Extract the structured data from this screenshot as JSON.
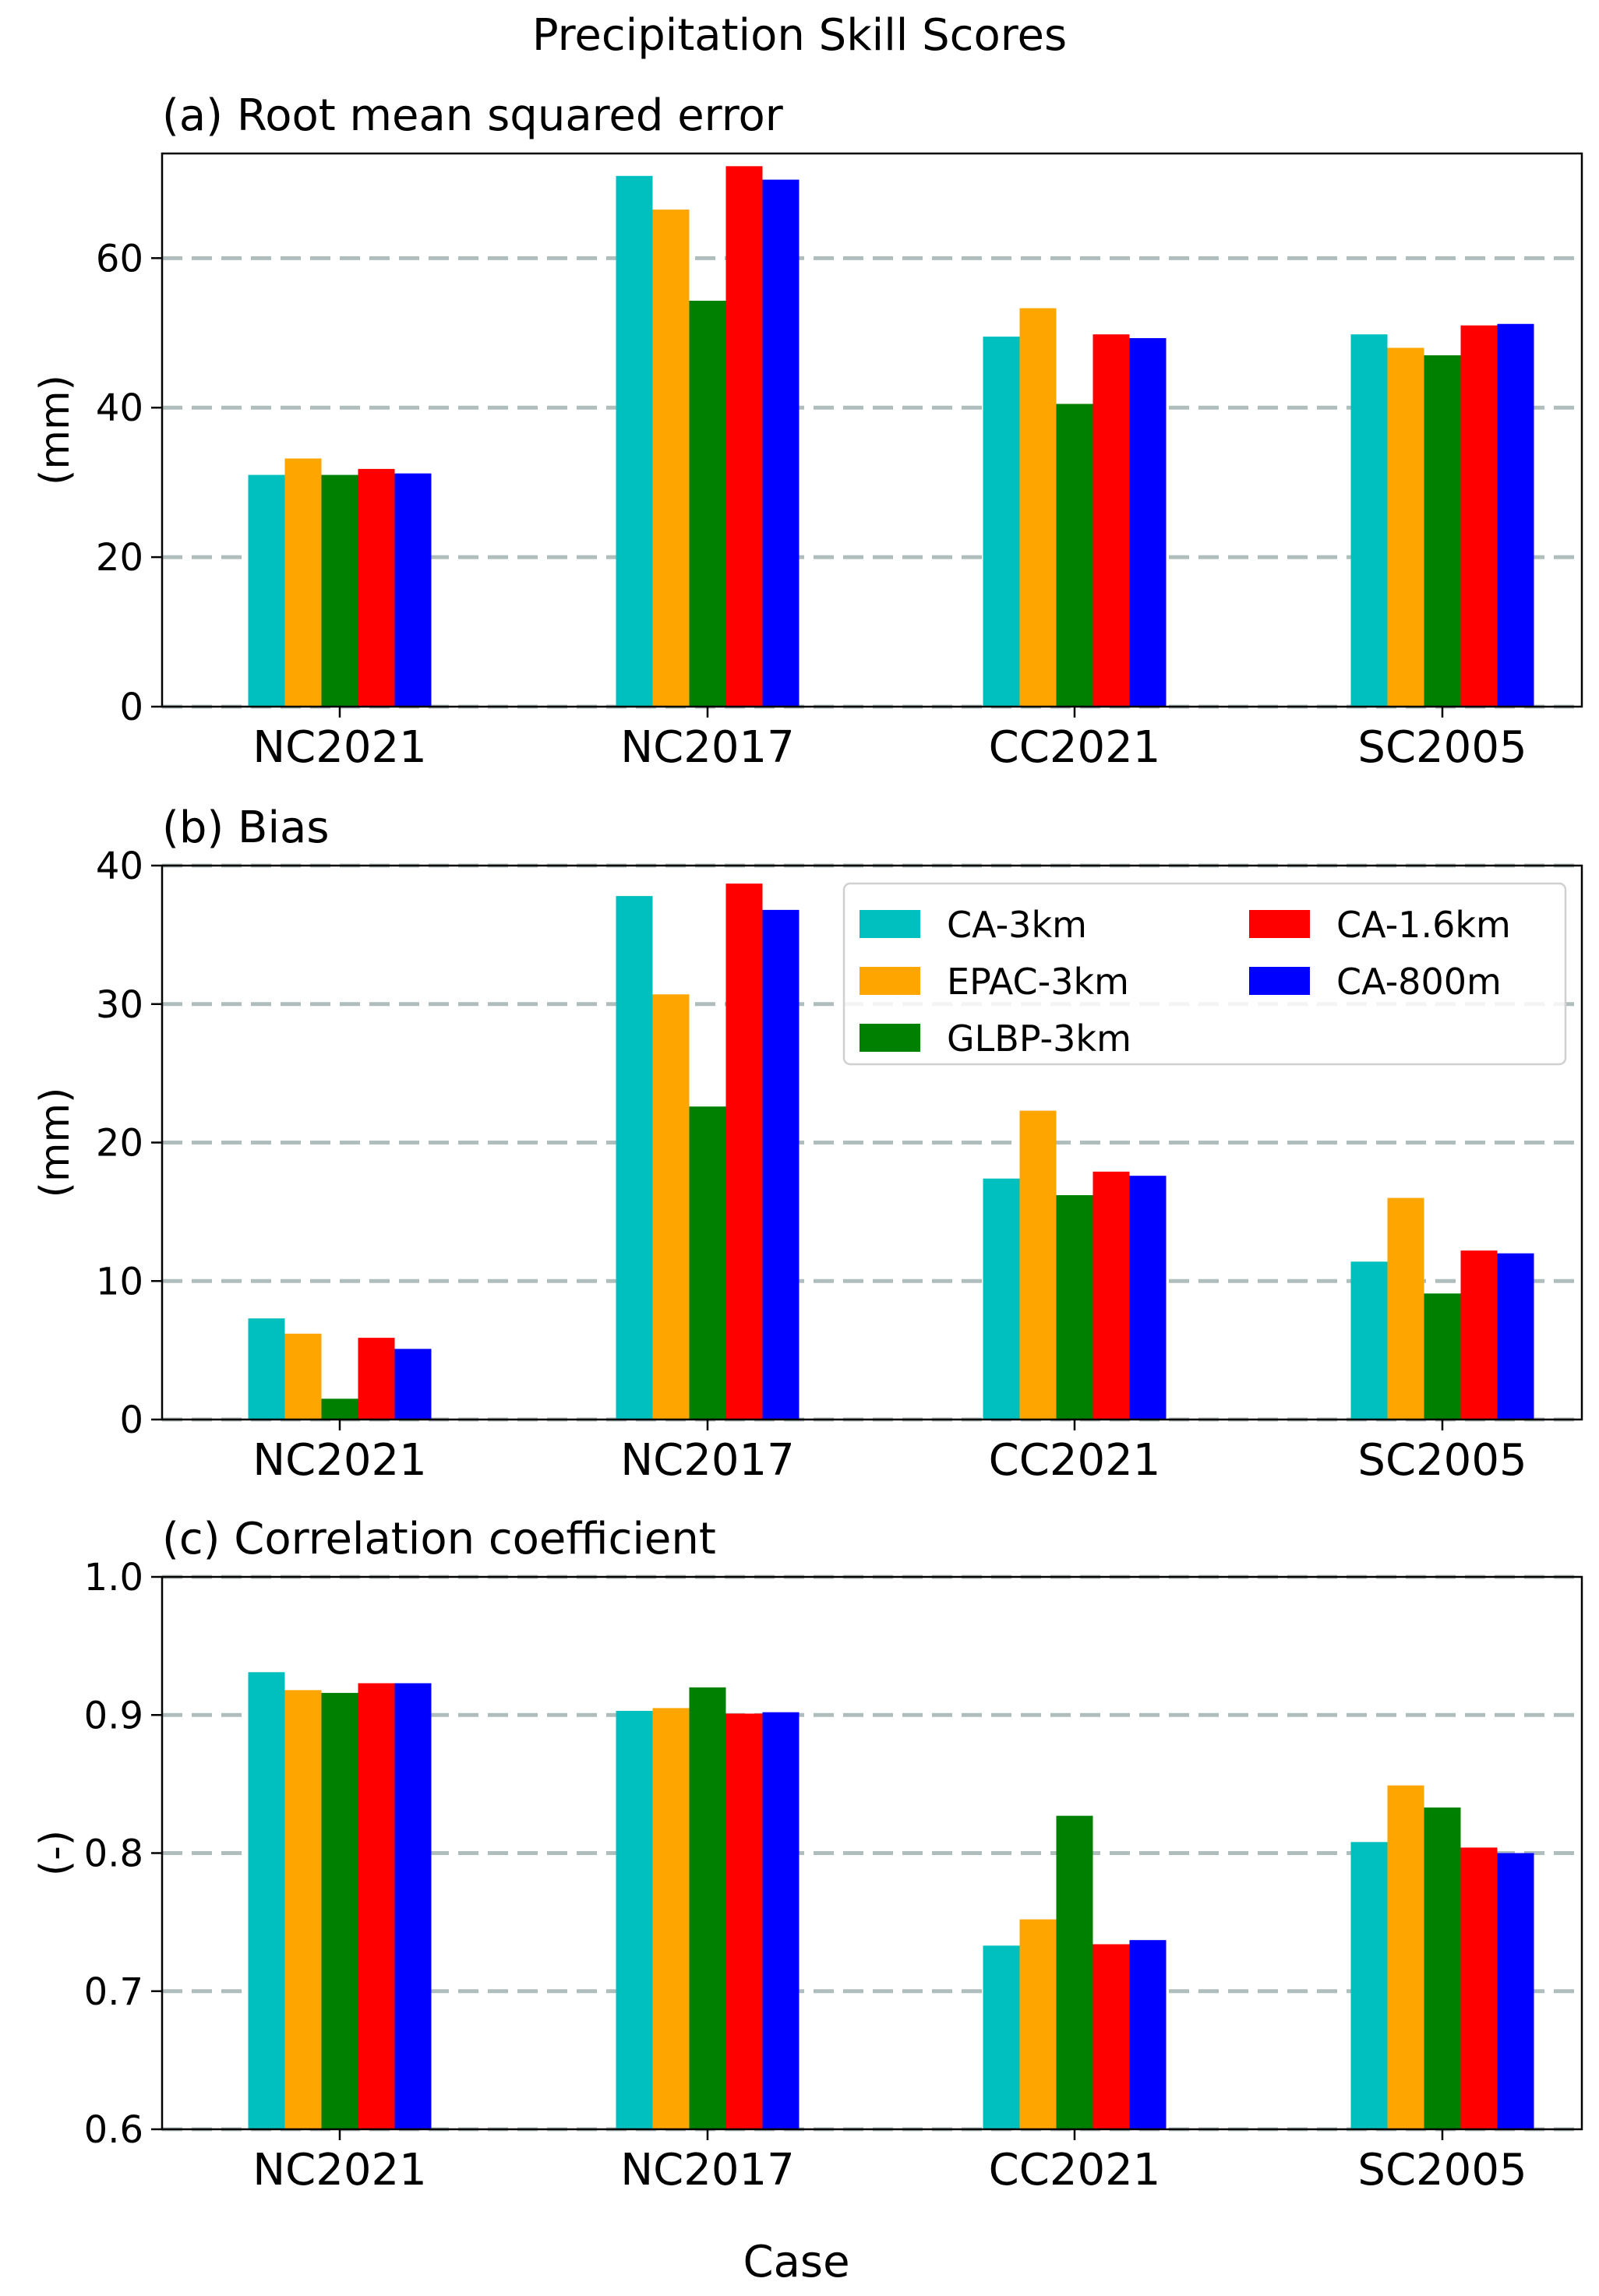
{
  "figure": {
    "title": "Precipitation Skill Scores",
    "xlabel": "Case"
  },
  "legend": {
    "items": [
      {
        "name": "CA-3km",
        "color": "#00BFBF"
      },
      {
        "name": "EPAC-3km",
        "color": "#FFA500"
      },
      {
        "name": "GLBP-3km",
        "color": "#008000"
      },
      {
        "name": "CA-1.6km",
        "color": "#FF0000"
      },
      {
        "name": "CA-800m",
        "color": "#0000FF"
      }
    ]
  },
  "chart_data": [
    {
      "type": "bar",
      "title": "(a) Root mean squared error",
      "ylabel": "(mm)",
      "xlabel": "",
      "ylim": [
        0,
        74
      ],
      "yticks": [
        0,
        20,
        40,
        60
      ],
      "ytick_labels": [
        "0",
        "20",
        "40",
        "60"
      ],
      "grid": "horizontal dashed",
      "categories": [
        "NC2021",
        "NC2017",
        "CC2021",
        "SC2005"
      ],
      "series": [
        {
          "name": "CA-3km",
          "values": [
            31.0,
            71.0,
            49.5,
            49.8
          ]
        },
        {
          "name": "EPAC-3km",
          "values": [
            33.2,
            66.5,
            53.3,
            48.0
          ]
        },
        {
          "name": "GLBP-3km",
          "values": [
            31.0,
            54.3,
            40.5,
            47.0
          ]
        },
        {
          "name": "CA-1.6km",
          "values": [
            31.8,
            72.3,
            49.8,
            51.0
          ]
        },
        {
          "name": "CA-800m",
          "values": [
            31.2,
            70.5,
            49.3,
            51.2
          ]
        }
      ]
    },
    {
      "type": "bar",
      "title": "(b) Bias",
      "ylabel": "(mm)",
      "xlabel": "",
      "ylim": [
        0,
        40
      ],
      "yticks": [
        0,
        10,
        20,
        30,
        40
      ],
      "ytick_labels": [
        "0",
        "10",
        "20",
        "30",
        "40"
      ],
      "grid": "horizontal dashed",
      "legend_position": "top-right",
      "categories": [
        "NC2021",
        "NC2017",
        "CC2021",
        "SC2005"
      ],
      "series": [
        {
          "name": "CA-3km",
          "values": [
            7.3,
            37.8,
            17.4,
            11.4
          ]
        },
        {
          "name": "EPAC-3km",
          "values": [
            6.2,
            30.7,
            22.3,
            16.0
          ]
        },
        {
          "name": "GLBP-3km",
          "values": [
            1.5,
            22.6,
            16.2,
            9.1
          ]
        },
        {
          "name": "CA-1.6km",
          "values": [
            5.9,
            38.7,
            17.9,
            12.2
          ]
        },
        {
          "name": "CA-800m",
          "values": [
            5.1,
            36.8,
            17.6,
            12.0
          ]
        }
      ]
    },
    {
      "type": "bar",
      "title": "(c) Correlation coefficient",
      "ylabel": "(-)",
      "xlabel": "Case",
      "ylim": [
        0.6,
        1.0
      ],
      "yticks": [
        0.6,
        0.7,
        0.8,
        0.9,
        1.0
      ],
      "ytick_labels": [
        "0.6",
        "0.7",
        "0.8",
        "0.9",
        "1.0"
      ],
      "grid": "horizontal dashed",
      "categories": [
        "NC2021",
        "NC2017",
        "CC2021",
        "SC2005"
      ],
      "series": [
        {
          "name": "CA-3km",
          "values": [
            0.931,
            0.903,
            0.733,
            0.808
          ]
        },
        {
          "name": "EPAC-3km",
          "values": [
            0.918,
            0.905,
            0.752,
            0.849
          ]
        },
        {
          "name": "GLBP-3km",
          "values": [
            0.916,
            0.92,
            0.827,
            0.833
          ]
        },
        {
          "name": "CA-1.6km",
          "values": [
            0.923,
            0.901,
            0.734,
            0.804
          ]
        },
        {
          "name": "CA-800m",
          "values": [
            0.923,
            0.902,
            0.737,
            0.8
          ]
        }
      ]
    }
  ]
}
